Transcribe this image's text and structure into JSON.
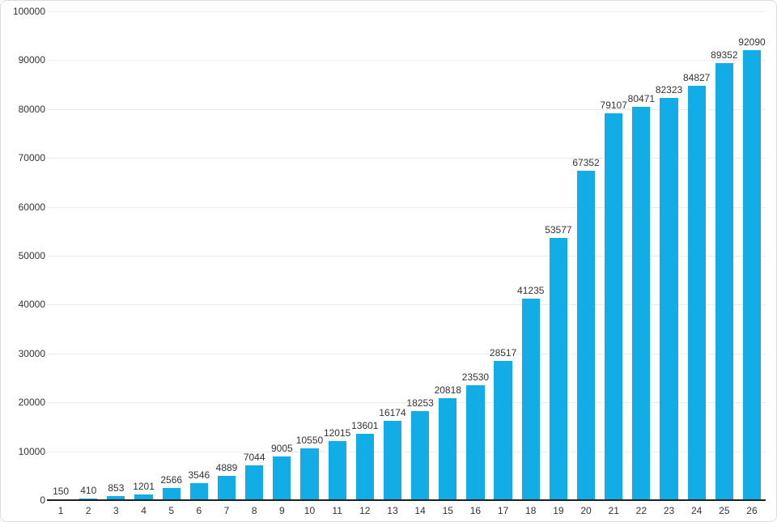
{
  "chart_data": {
    "type": "bar",
    "categories": [
      "1",
      "2",
      "3",
      "4",
      "5",
      "6",
      "7",
      "8",
      "9",
      "10",
      "11",
      "12",
      "13",
      "14",
      "15",
      "16",
      "17",
      "18",
      "19",
      "20",
      "21",
      "22",
      "23",
      "24",
      "25",
      "26"
    ],
    "values": [
      150,
      410,
      853,
      1201,
      2566,
      3546,
      4889,
      7044,
      9005,
      10550,
      12015,
      13601,
      16174,
      18253,
      20818,
      23530,
      28517,
      41235,
      53577,
      67352,
      79107,
      80471,
      82323,
      84827,
      89352,
      92090
    ],
    "title": "",
    "xlabel": "",
    "ylabel": "",
    "ylim": [
      0,
      100000
    ],
    "ytick_step": 10000,
    "ytick_labels": [
      "0",
      "10000",
      "20000",
      "30000",
      "40000",
      "50000",
      "60000",
      "70000",
      "80000",
      "90000",
      "100000"
    ],
    "grid": true,
    "data_labels": true,
    "legend": "none",
    "colors": {
      "bar": "#12ace6",
      "gridline": "#ebebeb",
      "axis_line": "#222222",
      "text": "#333333",
      "frame_border": "#d9dcdf",
      "background": "#ffffff"
    }
  }
}
